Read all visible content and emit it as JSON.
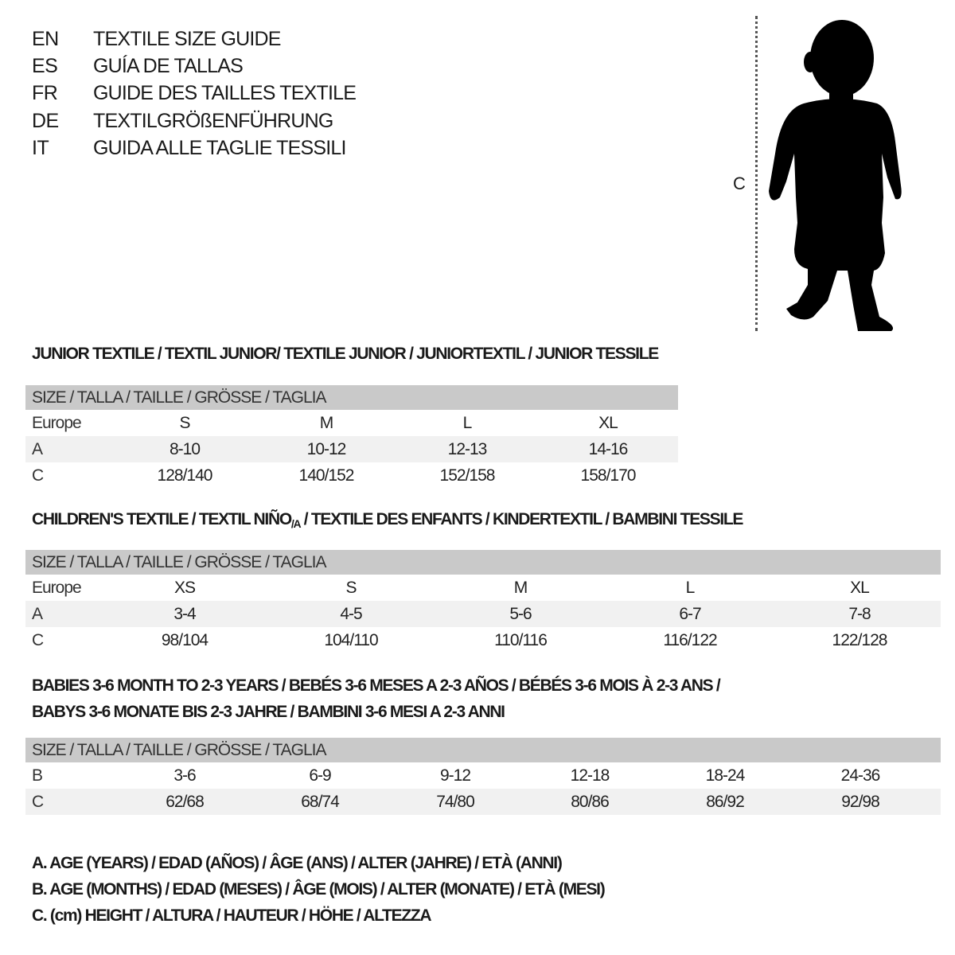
{
  "titles": [
    {
      "code": "EN",
      "text": "TEXTILE SIZE GUIDE"
    },
    {
      "code": "ES",
      "text": "GUÍA DE TALLAS"
    },
    {
      "code": "FR",
      "text": "GUIDE DES TAILLES TEXTILE"
    },
    {
      "code": "DE",
      "text": "TEXTILGRÖßENFÜHRUNG"
    },
    {
      "code": "IT",
      "text": "GUIDA ALLE TAGLIE TESSILI"
    }
  ],
  "figure": {
    "measure_label": "C",
    "icon": "child-silhouette-icon"
  },
  "junior": {
    "title": "JUNIOR TEXTILE / TEXTIL JUNIOR/ TEXTILE JUNIOR / JUNIORTEXTIL / JUNIOR TESSILE",
    "header": "SIZE / TALLA / TAILLE / GRÖSSE / TAGLIA",
    "rows": [
      {
        "label": "Europe",
        "values": [
          "S",
          "M",
          "L",
          "XL"
        ]
      },
      {
        "label": "A",
        "values": [
          "8-10",
          "10-12",
          "12-13",
          "14-16"
        ]
      },
      {
        "label": "C",
        "values": [
          "128/140",
          "140/152",
          "152/158",
          "158/170"
        ]
      }
    ]
  },
  "children": {
    "title_pre": "CHILDREN'S TEXTILE / TEXTIL NIÑO",
    "title_sub": "/A",
    "title_post": " / TEXTILE DES ENFANTS / KINDERTEXTIL / BAMBINI TESSILE",
    "header": "SIZE / TALLA / TAILLE / GRÖSSE / TAGLIA",
    "rows": [
      {
        "label": "Europe",
        "values": [
          "XS",
          "S",
          "M",
          "L",
          "XL"
        ]
      },
      {
        "label": "A",
        "values": [
          "3-4",
          "4-5",
          "5-6",
          "6-7",
          "7-8"
        ]
      },
      {
        "label": "C",
        "values": [
          "98/104",
          "104/110",
          "110/116",
          "116/122",
          "122/128"
        ]
      }
    ]
  },
  "babies": {
    "title_line1": "BABIES 3-6 MONTH TO 2-3 YEARS / BEBÉS 3-6 MESES A 2-3 AÑOS / BÉBÉS 3-6 MOIS À 2-3 ANS /",
    "title_line2": "BABYS 3-6 MONATE BIS 2-3 JAHRE / BAMBINI 3-6 MESI A 2-3 ANNI",
    "header": "SIZE / TALLA / TAILLE / GRÖSSE / TAGLIA",
    "rows": [
      {
        "label": "B",
        "values": [
          "3-6",
          "6-9",
          "9-12",
          "12-18",
          "18-24",
          "24-36"
        ]
      },
      {
        "label": "C",
        "values": [
          "62/68",
          "68/74",
          "74/80",
          "80/86",
          "86/92",
          "92/98"
        ]
      }
    ]
  },
  "legend": [
    "A. AGE (YEARS) / EDAD (AÑOS) / ÂGE (ANS) / ALTER (JAHRE) / ETÀ (ANNI)",
    "B. AGE (MONTHS) / EDAD (MESES) / ÂGE (MOIS) / ALTER (MONATE) / ETÀ (MESI)",
    "C. (cm) HEIGHT / ALTURA / HAUTEUR / HÖHE / ALTEZZA"
  ]
}
